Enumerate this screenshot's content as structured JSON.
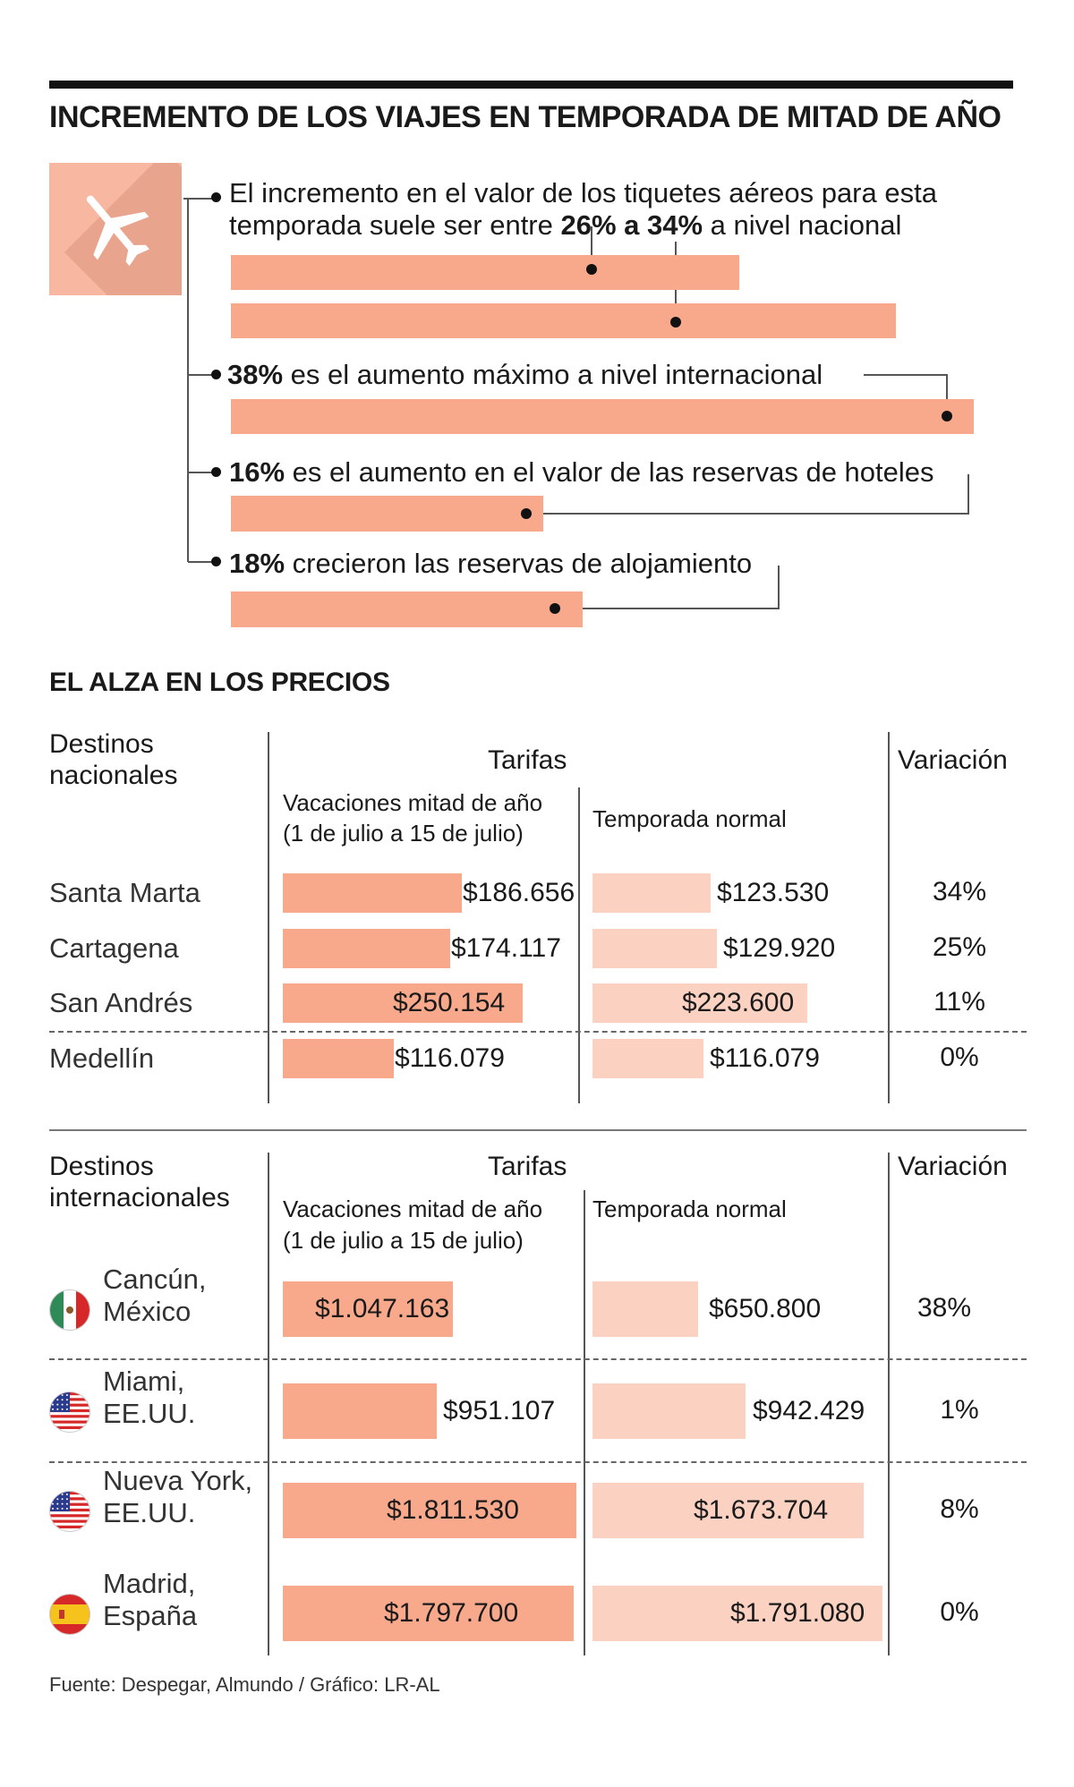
{
  "title": "INCREMENTO DE LOS VIAJES EN TEMPORADA DE MITAD DE AÑO",
  "stats": {
    "s1_line1": "El incremento en el valor de los tiquetes aéreos para esta",
    "s1_line2_pre": "temporada suele ser entre ",
    "s1_line2_bold": "26% a 34%",
    "s1_line2_post": " a nivel nacional",
    "s2_bold": "38%",
    "s2_text": " es el aumento máximo a nivel internacional",
    "s3_bold": "16%",
    "s3_text": " es el aumento en el valor de las reservas de hoteles",
    "s4_bold": "18%",
    "s4_text": " crecieron las reservas de alojamiento"
  },
  "section_title": "EL ALZA EN LOS PRECIOS",
  "national": {
    "header": [
      "Destinos",
      "nacionales"
    ],
    "tarifas": "Tarifas",
    "variacion": "Variación",
    "col_a": [
      "Vacaciones mitad de año",
      "(1 de julio a 15 de julio)"
    ],
    "col_b": "Temporada normal",
    "rows": [
      {
        "city": "Santa Marta",
        "a": "$186.656",
        "b": "$123.530",
        "var": "34%"
      },
      {
        "city": "Cartagena",
        "a": "$174.117",
        "b": "$129.920",
        "var": "25%"
      },
      {
        "city": "San Andrés",
        "a": "$250.154",
        "b": "$223.600",
        "var": "11%"
      },
      {
        "city": "Medellín",
        "a": "$116.079",
        "b": "$116.079",
        "var": "0%"
      }
    ]
  },
  "international": {
    "header": [
      "Destinos",
      "internacionales"
    ],
    "tarifas": "Tarifas",
    "variacion": "Variación",
    "col_a": [
      "Vacaciones mitad de año",
      "(1 de julio a 15 de julio)"
    ],
    "col_b": "Temporada normal",
    "rows": [
      {
        "city": [
          "Cancún,",
          "México"
        ],
        "flag": "mexico-flag-icon",
        "a": "$1.047.163",
        "b": "$650.800",
        "var": "38%"
      },
      {
        "city": [
          "Miami,",
          "EE.UU."
        ],
        "flag": "usa-flag-icon",
        "a": "$951.107",
        "b": "$942.429",
        "var": "1%"
      },
      {
        "city": [
          "Nueva York,",
          "EE.UU."
        ],
        "flag": "usa-flag-icon",
        "a": "$1.811.530",
        "b": "$1.673.704",
        "var": "8%"
      },
      {
        "city": [
          "Madrid,",
          "España"
        ],
        "flag": "spain-flag-icon",
        "a": "$1.797.700",
        "b": "$1.791.080",
        "var": "0%"
      }
    ]
  },
  "source": "Fuente: Despegar, Almundo / Gráfico: LR-AL",
  "chart_data": [
    {
      "type": "bar",
      "categories": [
        "26%",
        "34%",
        "38%",
        "16%",
        "18%"
      ],
      "values": [
        26,
        34,
        38,
        16,
        18
      ]
    },
    {
      "type": "bar",
      "categories": [
        "Santa Marta",
        "Cartagena",
        "San Andrés",
        "Medellín"
      ],
      "series": [
        {
          "name": "Vacaciones mitad de año",
          "values": [
            186656,
            174117,
            250154,
            116079
          ]
        },
        {
          "name": "Temporada normal",
          "values": [
            123530,
            129920,
            223600,
            116079
          ]
        }
      ]
    },
    {
      "type": "bar",
      "categories": [
        "Cancún, México",
        "Miami, EE.UU.",
        "Nueva York, EE.UU.",
        "Madrid, España"
      ],
      "series": [
        {
          "name": "Vacaciones mitad de año",
          "values": [
            1047163,
            951107,
            1811530,
            1797700
          ]
        },
        {
          "name": "Temporada normal",
          "values": [
            650800,
            942429,
            1673704,
            1791080
          ]
        }
      ]
    }
  ],
  "colors": {
    "bar_a": "#f8a98c",
    "bar_b": "#fbd2c1",
    "icon_bg": "#f7b7a0"
  }
}
